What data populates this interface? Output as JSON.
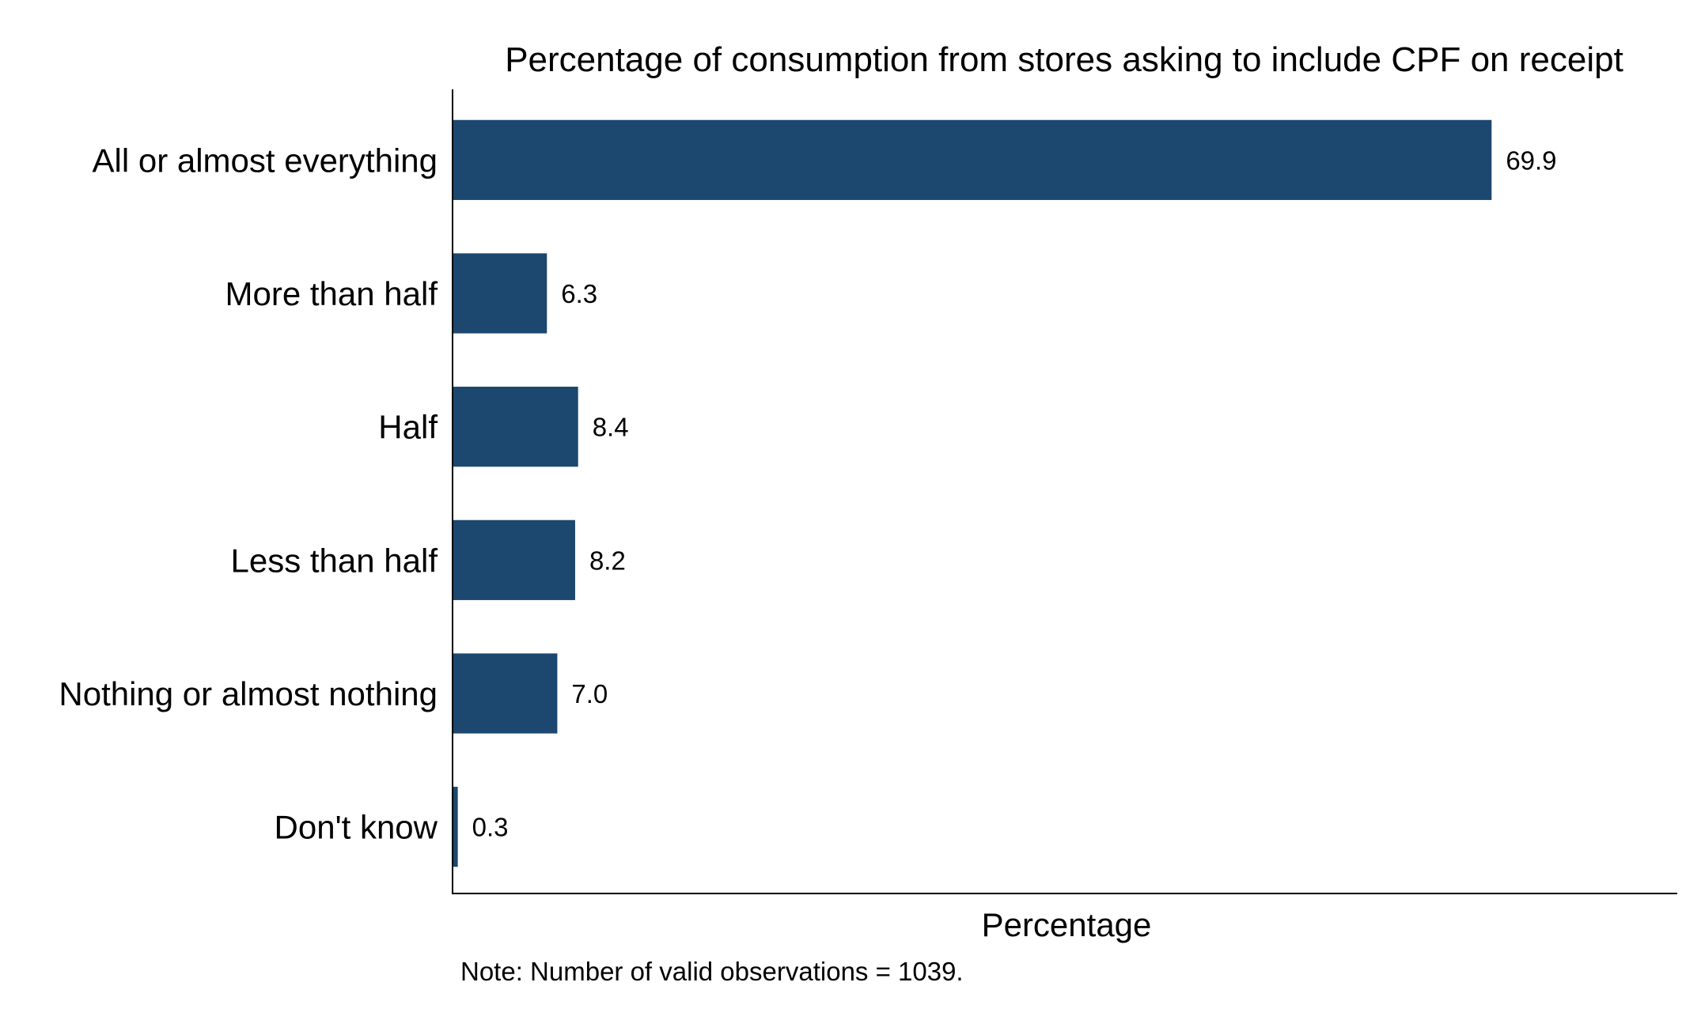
{
  "chart_data": {
    "type": "bar",
    "orientation": "horizontal",
    "title": "Percentage of consumption from stores asking to include CPF on receipt",
    "xlabel": "Percentage",
    "ylabel": "",
    "note": "Note: Number of valid observations = 1039.",
    "categories": [
      "All or almost everything",
      "More than half",
      "Half",
      "Less than half",
      "Nothing or almost nothing",
      "Don't know"
    ],
    "values": [
      69.9,
      6.3,
      8.4,
      8.2,
      7.0,
      0.3
    ],
    "data_labels": [
      "69.9",
      "6.3",
      "8.4",
      "8.2",
      "7.0",
      "0.3"
    ],
    "xlim": [
      0,
      82.4
    ],
    "bar_color": "#1c476e",
    "axis_color": "#000000",
    "grid": false,
    "legend": "none",
    "x_tick_labels": false
  }
}
